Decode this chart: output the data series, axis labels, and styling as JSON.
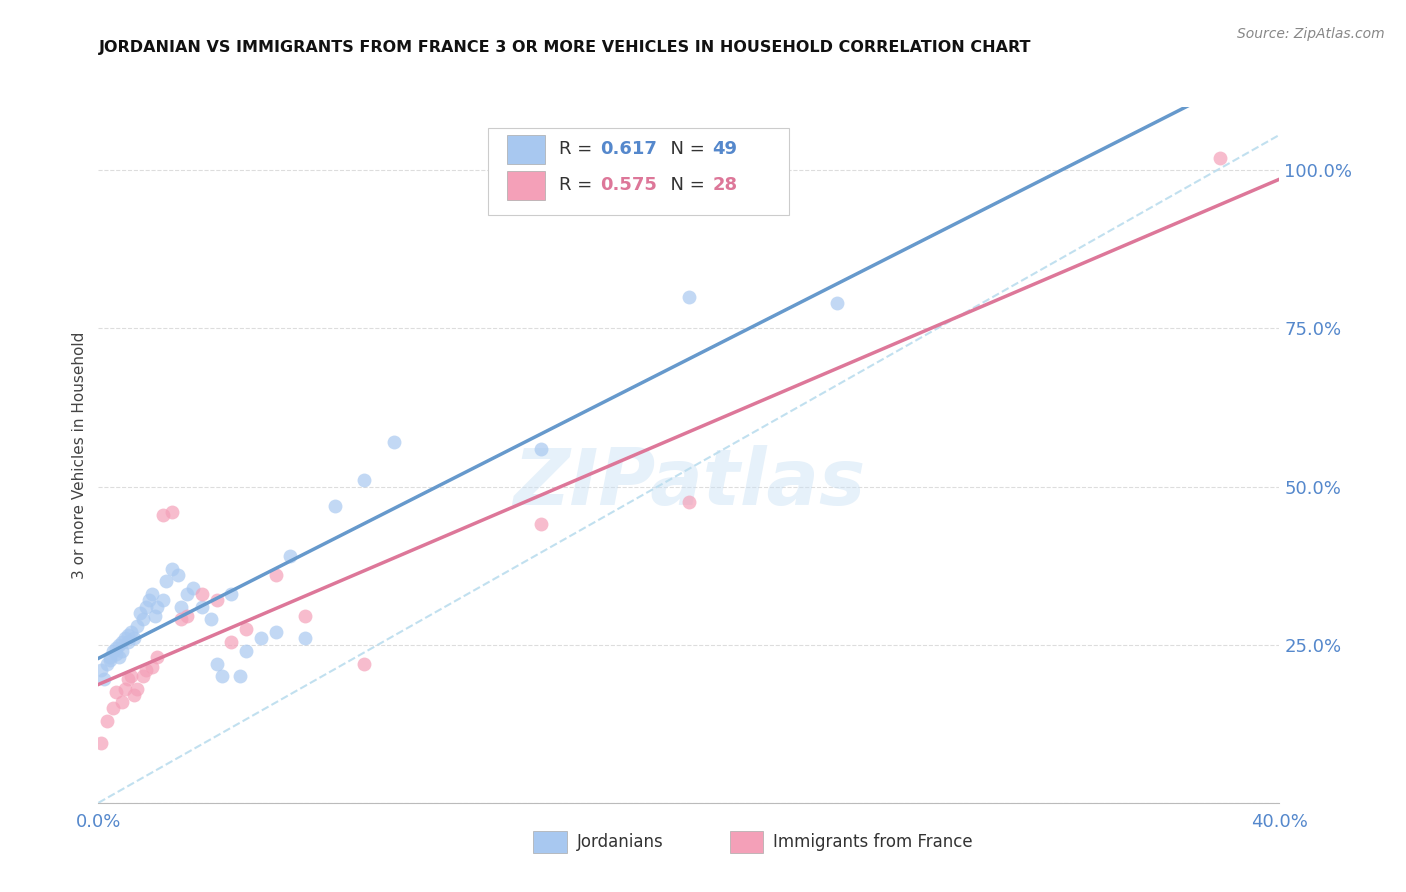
{
  "title": "JORDANIAN VS IMMIGRANTS FROM FRANCE 3 OR MORE VEHICLES IN HOUSEHOLD CORRELATION CHART",
  "source": "Source: ZipAtlas.com",
  "ylabel_left": "3 or more Vehicles in Household",
  "x_min": 0.0,
  "x_max": 0.4,
  "y_min": 0.0,
  "y_max": 1.1,
  "right_yticks": [
    0.0,
    0.25,
    0.5,
    0.75,
    1.0
  ],
  "right_yticklabels": [
    "",
    "25.0%",
    "50.0%",
    "75.0%",
    "100.0%"
  ],
  "bottom_xticks": [
    0.0,
    0.05,
    0.1,
    0.15,
    0.2,
    0.25,
    0.3,
    0.35,
    0.4
  ],
  "color_jordan": "#A8C8F0",
  "color_france": "#F4A0B8",
  "color_jordan_line": "#6699CC",
  "color_france_line": "#DD7799",
  "color_dashed": "#BBDDEE",
  "watermark": "ZIPatlas",
  "jordanians_x": [
    0.001,
    0.002,
    0.003,
    0.004,
    0.004,
    0.005,
    0.006,
    0.006,
    0.007,
    0.007,
    0.008,
    0.008,
    0.009,
    0.01,
    0.01,
    0.011,
    0.012,
    0.013,
    0.014,
    0.015,
    0.016,
    0.017,
    0.018,
    0.019,
    0.02,
    0.022,
    0.023,
    0.025,
    0.027,
    0.028,
    0.03,
    0.032,
    0.035,
    0.038,
    0.04,
    0.042,
    0.045,
    0.048,
    0.05,
    0.055,
    0.06,
    0.065,
    0.07,
    0.08,
    0.09,
    0.1,
    0.15,
    0.2,
    0.25
  ],
  "jordanians_y": [
    0.21,
    0.195,
    0.22,
    0.225,
    0.23,
    0.24,
    0.235,
    0.245,
    0.25,
    0.23,
    0.24,
    0.255,
    0.26,
    0.265,
    0.255,
    0.27,
    0.26,
    0.28,
    0.3,
    0.29,
    0.31,
    0.32,
    0.33,
    0.295,
    0.31,
    0.32,
    0.35,
    0.37,
    0.36,
    0.31,
    0.33,
    0.34,
    0.31,
    0.29,
    0.22,
    0.2,
    0.33,
    0.2,
    0.24,
    0.26,
    0.27,
    0.39,
    0.26,
    0.47,
    0.51,
    0.57,
    0.56,
    0.8,
    0.79
  ],
  "france_x": [
    0.001,
    0.003,
    0.005,
    0.006,
    0.008,
    0.009,
    0.01,
    0.011,
    0.012,
    0.013,
    0.015,
    0.016,
    0.018,
    0.02,
    0.022,
    0.025,
    0.028,
    0.03,
    0.035,
    0.04,
    0.045,
    0.05,
    0.06,
    0.07,
    0.09,
    0.15,
    0.2,
    0.38
  ],
  "france_y": [
    0.095,
    0.13,
    0.15,
    0.175,
    0.16,
    0.18,
    0.195,
    0.2,
    0.17,
    0.18,
    0.2,
    0.21,
    0.215,
    0.23,
    0.455,
    0.46,
    0.29,
    0.295,
    0.33,
    0.32,
    0.255,
    0.275,
    0.36,
    0.295,
    0.22,
    0.44,
    0.475,
    1.02
  ]
}
